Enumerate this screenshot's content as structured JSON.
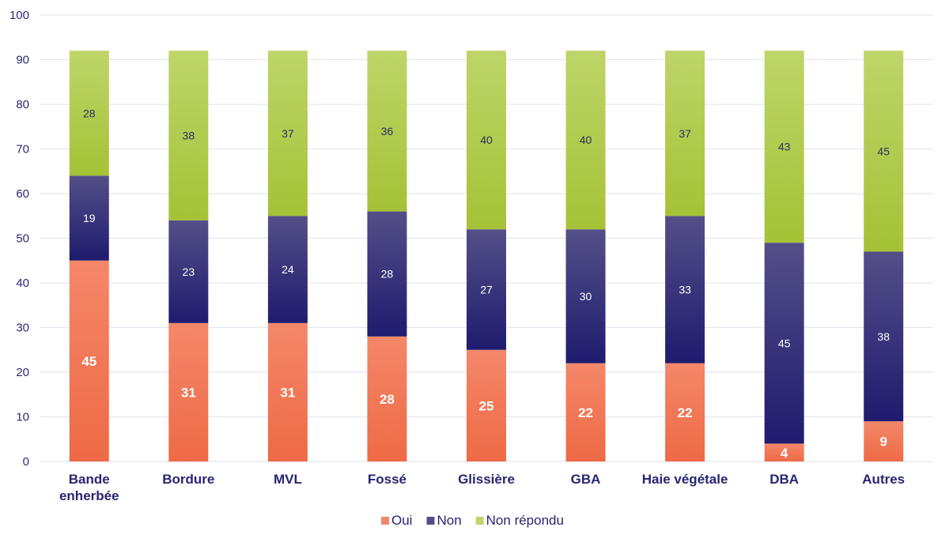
{
  "chart_data": {
    "type": "bar",
    "stacked": true,
    "title": "",
    "xlabel": "",
    "ylabel": "",
    "ylim": [
      0,
      100
    ],
    "yticks": [
      0,
      10,
      20,
      30,
      40,
      50,
      60,
      70,
      80,
      90,
      100
    ],
    "grid": true,
    "legend_position": "bottom",
    "categories": [
      [
        "Bande",
        "enherbée"
      ],
      [
        "Bordure"
      ],
      [
        "MVL"
      ],
      [
        "Fossé"
      ],
      [
        "Glissière"
      ],
      [
        "GBA"
      ],
      [
        "Haie végétale"
      ],
      [
        "DBA"
      ],
      [
        "Autres"
      ]
    ],
    "series": [
      {
        "name": "Oui",
        "color": "#ee6a45",
        "color_light": "#f4876a",
        "values": [
          45,
          31,
          31,
          28,
          25,
          22,
          22,
          4,
          9
        ]
      },
      {
        "name": "Non",
        "color": "#1f1b6e",
        "color_light": "#544f88",
        "values": [
          19,
          23,
          24,
          28,
          27,
          30,
          33,
          45,
          38
        ]
      },
      {
        "name": "Non répondu",
        "color": "#a5c236",
        "color_light": "#bed569",
        "values": [
          28,
          38,
          37,
          36,
          40,
          40,
          37,
          43,
          45
        ]
      }
    ]
  }
}
